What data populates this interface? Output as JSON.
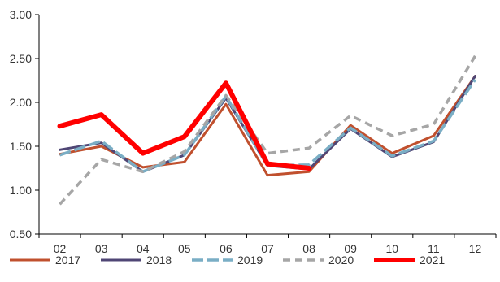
{
  "chart_data": {
    "type": "line",
    "title": "",
    "xlabel": "",
    "ylabel": "",
    "categories": [
      "02",
      "03",
      "04",
      "05",
      "06",
      "07",
      "08",
      "09",
      "10",
      "11",
      "12"
    ],
    "ylim": [
      0.5,
      3.0
    ],
    "yticks": [
      "0.50",
      "1.00",
      "1.50",
      "2.00",
      "2.50",
      "3.00"
    ],
    "grid": false,
    "legend_position": "bottom",
    "series": [
      {
        "name": "2017",
        "color": "#C0502E",
        "style": "solid",
        "values": [
          1.41,
          1.5,
          1.26,
          1.32,
          1.98,
          1.17,
          1.21,
          1.74,
          1.42,
          1.62,
          2.3
        ]
      },
      {
        "name": "2018",
        "color": "#4F4675",
        "style": "solid",
        "values": [
          1.46,
          1.54,
          1.21,
          1.4,
          2.05,
          1.28,
          1.24,
          1.7,
          1.38,
          1.55,
          2.3
        ]
      },
      {
        "name": "2019",
        "color": "#7AAEC5",
        "style": "dashed",
        "values": [
          1.4,
          1.56,
          1.21,
          1.4,
          2.07,
          1.28,
          1.29,
          1.71,
          1.39,
          1.56,
          2.26
        ]
      },
      {
        "name": "2020",
        "color": "#A6A6A6",
        "style": "dashed",
        "values": [
          0.84,
          1.35,
          1.21,
          1.44,
          2.08,
          1.42,
          1.48,
          1.85,
          1.62,
          1.75,
          2.53
        ]
      },
      {
        "name": "2021",
        "color": "#FF0000",
        "style": "bold",
        "values": [
          1.73,
          1.86,
          1.42,
          1.61,
          2.22,
          1.3,
          1.25,
          null,
          null,
          null,
          null
        ]
      }
    ]
  }
}
